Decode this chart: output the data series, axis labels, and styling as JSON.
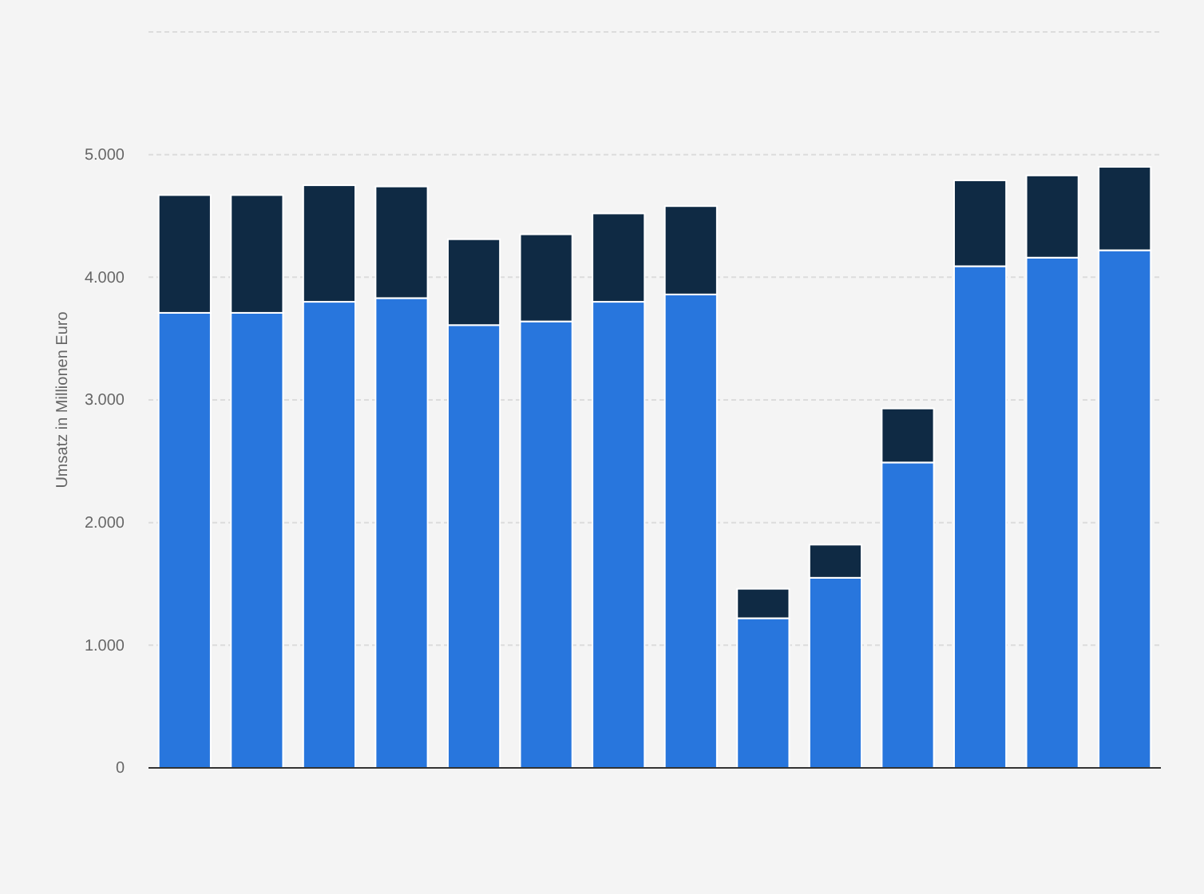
{
  "chart_data": {
    "type": "bar",
    "stacked": true,
    "ylabel": "Umsatz in Millionen Euro",
    "categories": [
      null,
      null,
      null,
      null,
      null,
      null,
      null,
      null,
      null,
      null,
      null,
      null,
      null,
      null
    ],
    "series": [
      {
        "color": "#2876dd",
        "values": [
          3710,
          3710,
          3800,
          3830,
          3610,
          3640,
          3800,
          3860,
          1220,
          1550,
          2490,
          4090,
          4160,
          4220
        ]
      },
      {
        "color": "#0f2a44",
        "values": [
          960,
          960,
          950,
          910,
          700,
          710,
          720,
          720,
          240,
          270,
          440,
          700,
          670,
          680
        ]
      }
    ],
    "ylim": [
      0,
      6000
    ],
    "yticks": [
      0,
      {
        "value": 1000,
        "label": "1.000"
      },
      {
        "value": 2000,
        "label": "2.000"
      },
      {
        "value": 3000,
        "label": "3.000"
      },
      {
        "value": 4000,
        "label": "4.000"
      },
      {
        "value": 5000,
        "label": "5.000"
      },
      {
        "value": 6000,
        "label": null
      }
    ],
    "grid": "y"
  }
}
